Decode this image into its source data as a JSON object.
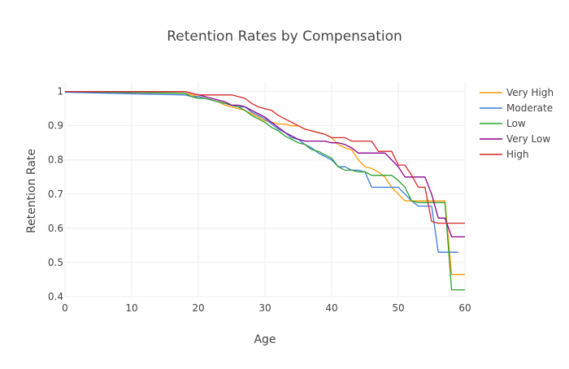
{
  "chart_data": {
    "type": "line",
    "title": "Retention Rates by Compensation",
    "xlabel": "Age",
    "ylabel": "Retention Rate",
    "xlim": [
      0,
      60
    ],
    "ylim": [
      0.4,
      1.03
    ],
    "x_ticks": [
      0,
      10,
      20,
      30,
      40,
      50,
      60
    ],
    "y_ticks": [
      0.4,
      0.5,
      0.6,
      0.7,
      0.8,
      0.9,
      1
    ],
    "y_tick_labels": [
      "0.4",
      "0.5",
      "0.6",
      "0.7",
      "0.8",
      "0.9",
      "1"
    ],
    "grid": true,
    "legend_position": "top-right",
    "series": [
      {
        "name": "Very High",
        "color": "#ff9900",
        "points": [
          [
            0,
            1.0
          ],
          [
            18,
            0.995
          ],
          [
            19,
            0.99
          ],
          [
            20,
            0.985
          ],
          [
            21,
            0.98
          ],
          [
            22,
            0.975
          ],
          [
            23,
            0.97
          ],
          [
            24,
            0.96
          ],
          [
            25,
            0.955
          ],
          [
            26,
            0.95
          ],
          [
            27,
            0.945
          ],
          [
            28,
            0.935
          ],
          [
            29,
            0.925
          ],
          [
            30,
            0.915
          ],
          [
            31,
            0.91
          ],
          [
            32,
            0.905
          ],
          [
            33,
            0.905
          ],
          [
            34,
            0.9
          ],
          [
            35,
            0.9
          ],
          [
            36,
            0.89
          ],
          [
            37,
            0.885
          ],
          [
            38,
            0.88
          ],
          [
            39,
            0.875
          ],
          [
            40,
            0.865
          ],
          [
            41,
            0.845
          ],
          [
            42,
            0.835
          ],
          [
            43,
            0.83
          ],
          [
            44,
            0.8
          ],
          [
            45,
            0.78
          ],
          [
            46,
            0.775
          ],
          [
            47,
            0.765
          ],
          [
            48,
            0.75
          ],
          [
            49,
            0.72
          ],
          [
            50,
            0.7
          ],
          [
            51,
            0.68
          ],
          [
            52,
            0.68
          ],
          [
            53,
            0.68
          ],
          [
            54,
            0.68
          ],
          [
            55,
            0.68
          ],
          [
            56,
            0.68
          ],
          [
            57,
            0.68
          ],
          [
            58,
            0.465
          ],
          [
            60,
            0.465
          ]
        ]
      },
      {
        "name": "Moderate",
        "color": "#3b7dd8",
        "points": [
          [
            0,
            0.998
          ],
          [
            18,
            0.99
          ],
          [
            19,
            0.985
          ],
          [
            20,
            0.985
          ],
          [
            21,
            0.98
          ],
          [
            22,
            0.975
          ],
          [
            23,
            0.97
          ],
          [
            24,
            0.965
          ],
          [
            25,
            0.96
          ],
          [
            26,
            0.955
          ],
          [
            27,
            0.955
          ],
          [
            28,
            0.94
          ],
          [
            29,
            0.93
          ],
          [
            30,
            0.92
          ],
          [
            31,
            0.905
          ],
          [
            32,
            0.89
          ],
          [
            33,
            0.88
          ],
          [
            34,
            0.865
          ],
          [
            35,
            0.86
          ],
          [
            36,
            0.845
          ],
          [
            37,
            0.835
          ],
          [
            38,
            0.82
          ],
          [
            39,
            0.81
          ],
          [
            40,
            0.8
          ],
          [
            41,
            0.78
          ],
          [
            42,
            0.78
          ],
          [
            43,
            0.77
          ],
          [
            44,
            0.77
          ],
          [
            45,
            0.765
          ],
          [
            46,
            0.72
          ],
          [
            47,
            0.72
          ],
          [
            48,
            0.72
          ],
          [
            49,
            0.72
          ],
          [
            50,
            0.72
          ],
          [
            51,
            0.7
          ],
          [
            52,
            0.68
          ],
          [
            53,
            0.665
          ],
          [
            54,
            0.665
          ],
          [
            55,
            0.665
          ],
          [
            56,
            0.53
          ],
          [
            57,
            0.53
          ],
          [
            59,
            0.53
          ]
        ]
      },
      {
        "name": "Low",
        "color": "#2ca02c",
        "points": [
          [
            0,
            1.0
          ],
          [
            18,
            0.995
          ],
          [
            19,
            0.985
          ],
          [
            20,
            0.98
          ],
          [
            21,
            0.98
          ],
          [
            22,
            0.975
          ],
          [
            23,
            0.97
          ],
          [
            24,
            0.965
          ],
          [
            25,
            0.96
          ],
          [
            26,
            0.955
          ],
          [
            27,
            0.945
          ],
          [
            28,
            0.93
          ],
          [
            29,
            0.92
          ],
          [
            30,
            0.91
          ],
          [
            31,
            0.895
          ],
          [
            32,
            0.885
          ],
          [
            33,
            0.87
          ],
          [
            34,
            0.86
          ],
          [
            35,
            0.85
          ],
          [
            36,
            0.845
          ],
          [
            37,
            0.83
          ],
          [
            38,
            0.825
          ],
          [
            39,
            0.815
          ],
          [
            40,
            0.805
          ],
          [
            41,
            0.78
          ],
          [
            42,
            0.77
          ],
          [
            43,
            0.77
          ],
          [
            44,
            0.765
          ],
          [
            45,
            0.765
          ],
          [
            46,
            0.755
          ],
          [
            47,
            0.755
          ],
          [
            48,
            0.755
          ],
          [
            49,
            0.755
          ],
          [
            50,
            0.74
          ],
          [
            51,
            0.72
          ],
          [
            52,
            0.68
          ],
          [
            53,
            0.675
          ],
          [
            54,
            0.675
          ],
          [
            55,
            0.675
          ],
          [
            56,
            0.675
          ],
          [
            57,
            0.675
          ],
          [
            58,
            0.42
          ],
          [
            60,
            0.42
          ]
        ]
      },
      {
        "name": "Very Low",
        "color": "#8b008b",
        "points": [
          [
            0,
            1.0
          ],
          [
            18,
            1.0
          ],
          [
            19,
            0.995
          ],
          [
            20,
            0.99
          ],
          [
            21,
            0.985
          ],
          [
            22,
            0.98
          ],
          [
            23,
            0.975
          ],
          [
            24,
            0.97
          ],
          [
            25,
            0.96
          ],
          [
            26,
            0.96
          ],
          [
            27,
            0.955
          ],
          [
            28,
            0.945
          ],
          [
            29,
            0.935
          ],
          [
            30,
            0.925
          ],
          [
            31,
            0.91
          ],
          [
            32,
            0.895
          ],
          [
            33,
            0.88
          ],
          [
            34,
            0.87
          ],
          [
            35,
            0.86
          ],
          [
            36,
            0.855
          ],
          [
            37,
            0.855
          ],
          [
            38,
            0.855
          ],
          [
            39,
            0.855
          ],
          [
            40,
            0.85
          ],
          [
            41,
            0.85
          ],
          [
            42,
            0.845
          ],
          [
            43,
            0.835
          ],
          [
            44,
            0.82
          ],
          [
            45,
            0.82
          ],
          [
            46,
            0.82
          ],
          [
            47,
            0.82
          ],
          [
            48,
            0.82
          ],
          [
            49,
            0.8
          ],
          [
            50,
            0.78
          ],
          [
            51,
            0.75
          ],
          [
            52,
            0.75
          ],
          [
            53,
            0.75
          ],
          [
            54,
            0.75
          ],
          [
            55,
            0.7
          ],
          [
            56,
            0.63
          ],
          [
            57,
            0.63
          ],
          [
            58,
            0.575
          ],
          [
            60,
            0.575
          ]
        ]
      },
      {
        "name": "High",
        "color": "#d62728",
        "points": [
          [
            0,
            1.0
          ],
          [
            18,
            1.0
          ],
          [
            19,
            0.995
          ],
          [
            20,
            0.99
          ],
          [
            21,
            0.99
          ],
          [
            22,
            0.99
          ],
          [
            23,
            0.99
          ],
          [
            24,
            0.99
          ],
          [
            25,
            0.99
          ],
          [
            26,
            0.985
          ],
          [
            27,
            0.98
          ],
          [
            28,
            0.965
          ],
          [
            29,
            0.955
          ],
          [
            30,
            0.95
          ],
          [
            31,
            0.945
          ],
          [
            32,
            0.93
          ],
          [
            33,
            0.92
          ],
          [
            34,
            0.91
          ],
          [
            35,
            0.9
          ],
          [
            36,
            0.89
          ],
          [
            37,
            0.885
          ],
          [
            38,
            0.88
          ],
          [
            39,
            0.875
          ],
          [
            40,
            0.865
          ],
          [
            41,
            0.865
          ],
          [
            42,
            0.865
          ],
          [
            43,
            0.855
          ],
          [
            44,
            0.855
          ],
          [
            45,
            0.855
          ],
          [
            46,
            0.855
          ],
          [
            47,
            0.825
          ],
          [
            48,
            0.825
          ],
          [
            49,
            0.825
          ],
          [
            50,
            0.785
          ],
          [
            51,
            0.785
          ],
          [
            52,
            0.755
          ],
          [
            53,
            0.72
          ],
          [
            54,
            0.72
          ],
          [
            55,
            0.62
          ],
          [
            56,
            0.615
          ],
          [
            58,
            0.615
          ],
          [
            60,
            0.615
          ]
        ]
      }
    ]
  },
  "colors": {
    "grid": "#eeeeee",
    "text": "#444444",
    "title": "#444444"
  }
}
